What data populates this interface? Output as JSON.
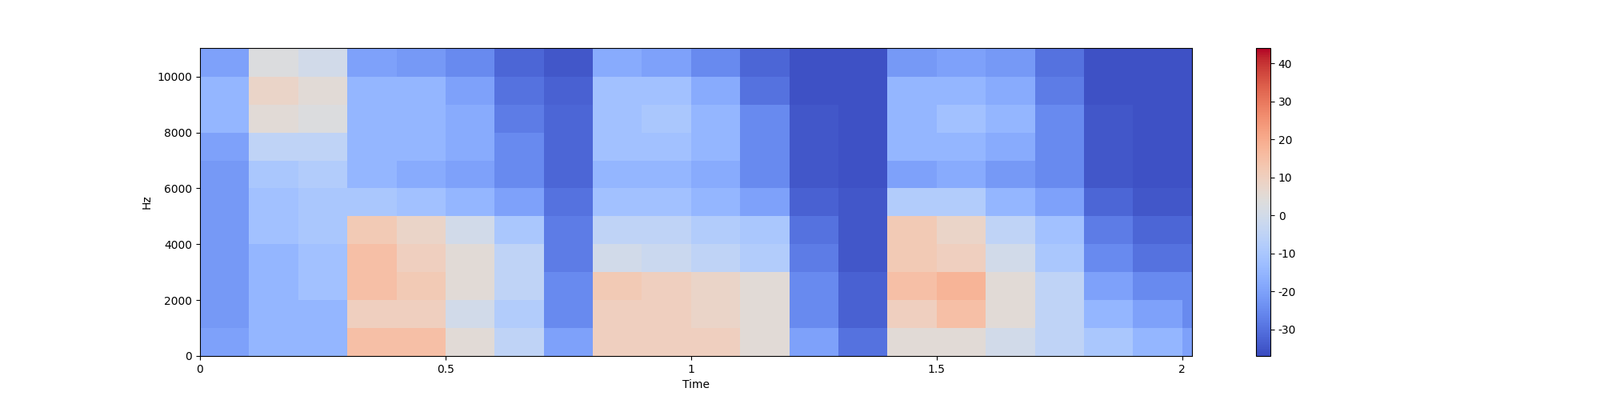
{
  "chart_data": {
    "type": "heatmap",
    "x_label": "Time",
    "y_label": "Hz",
    "xlim": [
      0,
      2.02
    ],
    "ylim": [
      0,
      11025
    ],
    "xticks": [
      0,
      0.5,
      1,
      1.5,
      2
    ],
    "yticks": [
      0,
      2000,
      4000,
      6000,
      8000,
      10000
    ],
    "x_edges": [
      0,
      0.1,
      0.2,
      0.3,
      0.4,
      0.5,
      0.6,
      0.7,
      0.8,
      0.9,
      1.0,
      1.1,
      1.2,
      1.3,
      1.4,
      1.5,
      1.6,
      1.7,
      1.8,
      1.9,
      2.0,
      2.02
    ],
    "y_edges": [
      0,
      1000,
      2000,
      3000,
      4000,
      5000,
      6000,
      7000,
      8000,
      9000,
      10000,
      11025
    ],
    "cells": [
      [
        -20,
        -15,
        -15,
        15,
        15,
        5,
        -5,
        -20,
        10,
        10,
        10,
        5,
        -20,
        -30,
        5,
        5,
        0,
        -5,
        -10,
        -15,
        -20
      ],
      [
        -22,
        -15,
        -15,
        10,
        10,
        0,
        -8,
        -25,
        10,
        10,
        8,
        5,
        -25,
        -33,
        10,
        15,
        5,
        -5,
        -15,
        -20,
        -25
      ],
      [
        -22,
        -15,
        -12,
        15,
        12,
        5,
        -5,
        -25,
        12,
        10,
        8,
        5,
        -25,
        -33,
        15,
        18,
        5,
        -5,
        -20,
        -25,
        -25
      ],
      [
        -22,
        -15,
        -12,
        15,
        10,
        5,
        -5,
        -28,
        0,
        -2,
        -5,
        -8,
        -28,
        -35,
        12,
        10,
        0,
        -10,
        -25,
        -30,
        -30
      ],
      [
        -22,
        -12,
        -10,
        12,
        8,
        0,
        -10,
        -28,
        -5,
        -5,
        -8,
        -10,
        -30,
        -35,
        12,
        8,
        -5,
        -12,
        -28,
        -32,
        -32
      ],
      [
        -22,
        -12,
        -10,
        -10,
        -12,
        -15,
        -20,
        -30,
        -12,
        -12,
        -15,
        -20,
        -33,
        -35,
        -8,
        -8,
        -15,
        -20,
        -32,
        -35,
        -35
      ],
      [
        -22,
        -10,
        -8,
        -15,
        -18,
        -20,
        -25,
        -32,
        -15,
        -15,
        -18,
        -25,
        -35,
        -36,
        -20,
        -18,
        -22,
        -25,
        -35,
        -36,
        -36
      ],
      [
        -20,
        -5,
        -5,
        -15,
        -15,
        -18,
        -25,
        -32,
        -12,
        -12,
        -15,
        -25,
        -35,
        -36,
        -15,
        -15,
        -18,
        -25,
        -35,
        -36,
        -36
      ],
      [
        -15,
        5,
        3,
        -15,
        -15,
        -18,
        -28,
        -32,
        -12,
        -10,
        -15,
        -25,
        -35,
        -36,
        -15,
        -12,
        -15,
        -25,
        -35,
        -36,
        -36
      ],
      [
        -15,
        8,
        5,
        -15,
        -15,
        -20,
        -30,
        -33,
        -12,
        -12,
        -18,
        -30,
        -36,
        -36,
        -15,
        -15,
        -18,
        -28,
        -36,
        -36,
        -36
      ],
      [
        -20,
        3,
        0,
        -20,
        -22,
        -25,
        -32,
        -35,
        -18,
        -20,
        -25,
        -32,
        -36,
        -36,
        -22,
        -20,
        -22,
        -30,
        -36,
        -36,
        -36
      ]
    ],
    "clim": [
      -37,
      44
    ],
    "colorbar_ticks": [
      -30,
      -20,
      -10,
      0,
      10,
      20,
      30,
      40
    ]
  }
}
